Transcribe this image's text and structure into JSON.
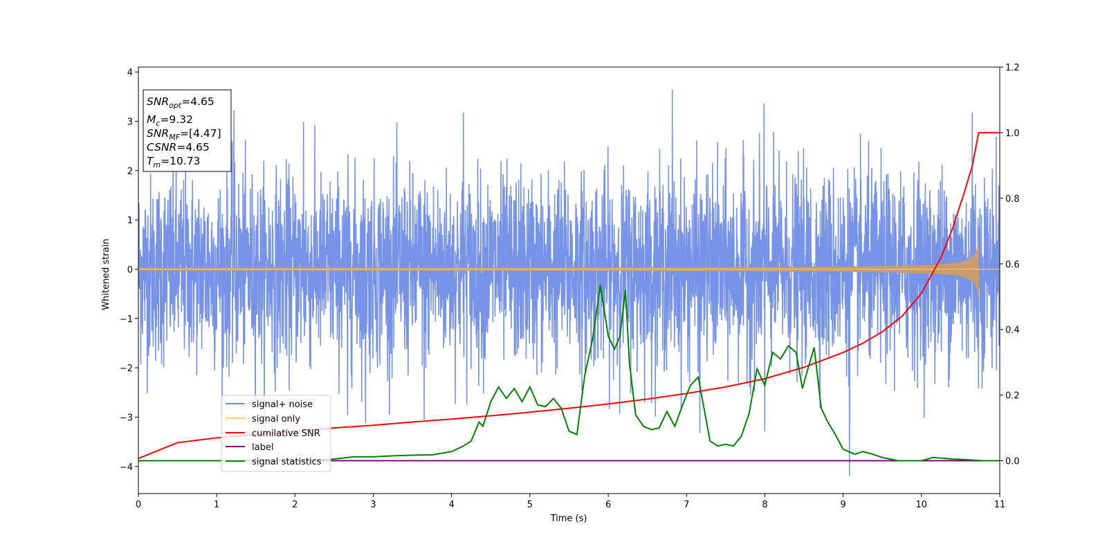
{
  "chart_data": {
    "type": "line",
    "xlabel": "Time (s)",
    "ylabel": "Whitened strain",
    "xlim": [
      0,
      11
    ],
    "ylim": [
      -4.55,
      4.1
    ],
    "y2lim": [
      -0.1,
      1.2
    ],
    "x_ticks": [
      0,
      1,
      2,
      3,
      4,
      5,
      6,
      7,
      8,
      9,
      10,
      11
    ],
    "y_ticks": [
      -4,
      -3,
      -2,
      -1,
      0,
      1,
      2,
      3,
      4
    ],
    "y2_ticks": [
      0.0,
      0.2,
      0.4,
      0.6,
      0.8,
      1.0,
      1.2
    ],
    "x_tick_labels": [
      "0",
      "1",
      "2",
      "3",
      "4",
      "5",
      "6",
      "7",
      "8",
      "9",
      "10",
      "11"
    ],
    "y_tick_labels": [
      "−4",
      "−3",
      "−2",
      "−1",
      "0",
      "1",
      "2",
      "3",
      "4"
    ],
    "y2_tick_labels": [
      "0.0",
      "0.2",
      "0.4",
      "0.6",
      "0.8",
      "1.0",
      "1.2"
    ],
    "grid": false,
    "legend_position": "lower-left",
    "legend": [
      {
        "label": "signal+ noise",
        "color": "#6b8ae6"
      },
      {
        "label": "signal only",
        "color": "#ffc864"
      },
      {
        "label": "cumilative SNR",
        "color": "#ff0000"
      },
      {
        "label": "label",
        "color": "#800080"
      },
      {
        "label": "signal statistics",
        "color": "#008000"
      }
    ],
    "info_box": {
      "snr_opt": {
        "sym": "SNR",
        "sub": "opt",
        "value": "=4.65"
      },
      "mc": {
        "sym": "M",
        "sub": "c",
        "value": "=9.32"
      },
      "snr_mf": {
        "sym": "SNR",
        "sub": "MF",
        "value": "=[4.47]"
      },
      "csnr": {
        "sym": "CSNR",
        "value": "=4.65"
      },
      "tm": {
        "sym": "T",
        "sub": "m",
        "value": "=10.73"
      }
    },
    "noise": {
      "description_axis": "left",
      "t_start": 0,
      "t_end": 11,
      "std": 0.95,
      "extremes": [
        {
          "t": 1.22,
          "y": 3.25
        },
        {
          "t": 2.11,
          "y": 3.0
        },
        {
          "t": 4.15,
          "y": 3.2
        },
        {
          "t": 6.82,
          "y": 3.68
        },
        {
          "t": 7.99,
          "y": 3.32
        },
        {
          "t": 10.65,
          "y": 3.08
        },
        {
          "t": 2.9,
          "y": -3.15
        },
        {
          "t": 3.65,
          "y": -3.05
        },
        {
          "t": 8.0,
          "y": -3.25
        },
        {
          "t": 9.08,
          "y": -4.15
        },
        {
          "t": 7.17,
          "y": -3.35
        },
        {
          "t": 2.67,
          "y": -2.95
        }
      ]
    },
    "signal_only": {
      "axis": "left",
      "merger_time": 10.73,
      "peak_amplitude": 0.62,
      "base_amplitude": 0.012
    },
    "series": [
      {
        "name": "cumilative SNR",
        "axis": "right",
        "color": "#ff0000",
        "x": [
          0,
          0.5,
          1,
          1.5,
          2,
          2.5,
          3,
          3.5,
          4,
          4.5,
          5,
          5.5,
          6,
          6.5,
          7,
          7.5,
          8,
          8.5,
          9,
          9.25,
          9.5,
          9.75,
          10,
          10.25,
          10.4,
          10.55,
          10.65,
          10.73,
          11
        ],
        "values": [
          0.007,
          0.055,
          0.07,
          0.08,
          0.09,
          0.1,
          0.108,
          0.118,
          0.127,
          0.137,
          0.148,
          0.16,
          0.173,
          0.188,
          0.205,
          0.225,
          0.25,
          0.285,
          0.33,
          0.358,
          0.393,
          0.44,
          0.51,
          0.62,
          0.71,
          0.82,
          0.9,
          1.0,
          1.0
        ]
      },
      {
        "name": "label",
        "axis": "right",
        "color": "#800080",
        "x": [
          0,
          11
        ],
        "values": [
          0,
          0
        ]
      },
      {
        "name": "signal statistics",
        "axis": "right",
        "color": "#008000",
        "x": [
          0,
          1,
          2,
          2.5,
          2.75,
          3.0,
          3.25,
          3.5,
          3.75,
          4.0,
          4.15,
          4.25,
          4.35,
          4.4,
          4.5,
          4.6,
          4.7,
          4.8,
          4.9,
          5.0,
          5.1,
          5.2,
          5.3,
          5.4,
          5.5,
          5.6,
          5.7,
          5.8,
          5.9,
          6.0,
          6.08,
          6.15,
          6.22,
          6.27,
          6.35,
          6.45,
          6.55,
          6.65,
          6.75,
          6.85,
          6.95,
          7.05,
          7.15,
          7.2,
          7.3,
          7.4,
          7.5,
          7.6,
          7.7,
          7.8,
          7.9,
          8.0,
          8.1,
          8.2,
          8.3,
          8.4,
          8.48,
          8.55,
          8.63,
          8.72,
          8.8,
          8.9,
          9.0,
          9.15,
          9.25,
          9.35,
          9.5,
          9.7,
          10.0,
          10.15,
          10.4,
          10.6,
          10.8,
          11
        ],
        "values": [
          0.0,
          0.0,
          0.0,
          0.005,
          0.012,
          0.012,
          0.015,
          0.017,
          0.018,
          0.028,
          0.045,
          0.06,
          0.118,
          0.105,
          0.18,
          0.225,
          0.19,
          0.22,
          0.18,
          0.225,
          0.17,
          0.165,
          0.19,
          0.16,
          0.09,
          0.08,
          0.26,
          0.37,
          0.535,
          0.38,
          0.34,
          0.38,
          0.52,
          0.3,
          0.14,
          0.105,
          0.095,
          0.1,
          0.15,
          0.105,
          0.17,
          0.23,
          0.255,
          0.19,
          0.06,
          0.045,
          0.05,
          0.045,
          0.075,
          0.145,
          0.28,
          0.23,
          0.33,
          0.31,
          0.35,
          0.33,
          0.22,
          0.28,
          0.345,
          0.16,
          0.12,
          0.08,
          0.035,
          0.02,
          0.028,
          0.022,
          0.01,
          0.0,
          0.0,
          0.01,
          0.005,
          0.003,
          0.0,
          0.0
        ]
      }
    ]
  }
}
